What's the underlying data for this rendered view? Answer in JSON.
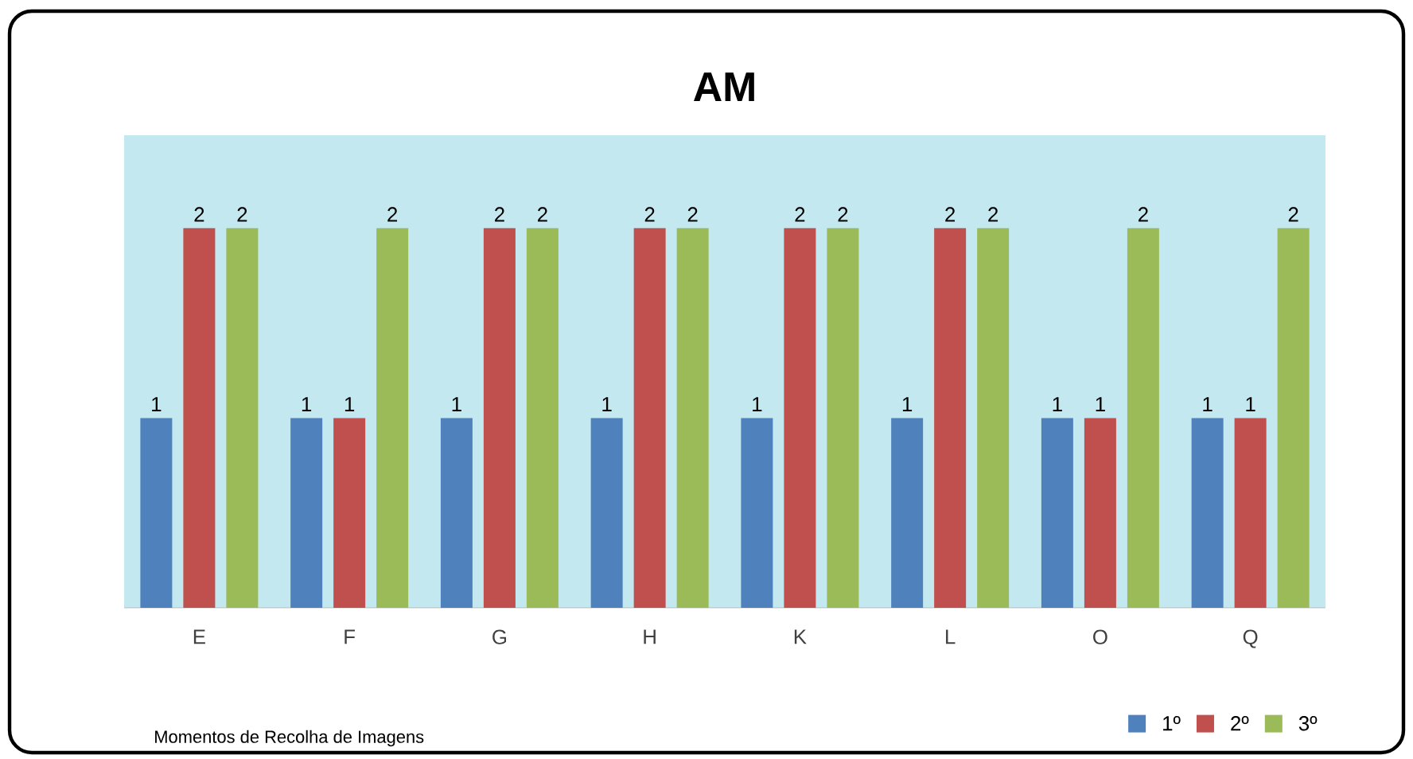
{
  "chart_data": {
    "type": "bar",
    "title": "AM",
    "xlabel": "Momentos de Recolha de Imagens",
    "categories": [
      "E",
      "F",
      "G",
      "H",
      "K",
      "L",
      "O",
      "Q"
    ],
    "series": [
      {
        "name": "1º",
        "color": "#4f81bd",
        "values": [
          1,
          1,
          1,
          1,
          1,
          1,
          1,
          1
        ]
      },
      {
        "name": "2º",
        "color": "#c0504d",
        "values": [
          2,
          1,
          2,
          2,
          2,
          2,
          1,
          1
        ]
      },
      {
        "name": "3º",
        "color": "#9bbb59",
        "values": [
          2,
          2,
          2,
          2,
          2,
          2,
          2,
          2
        ]
      }
    ],
    "data_labels": true,
    "legend": "bottom right"
  }
}
